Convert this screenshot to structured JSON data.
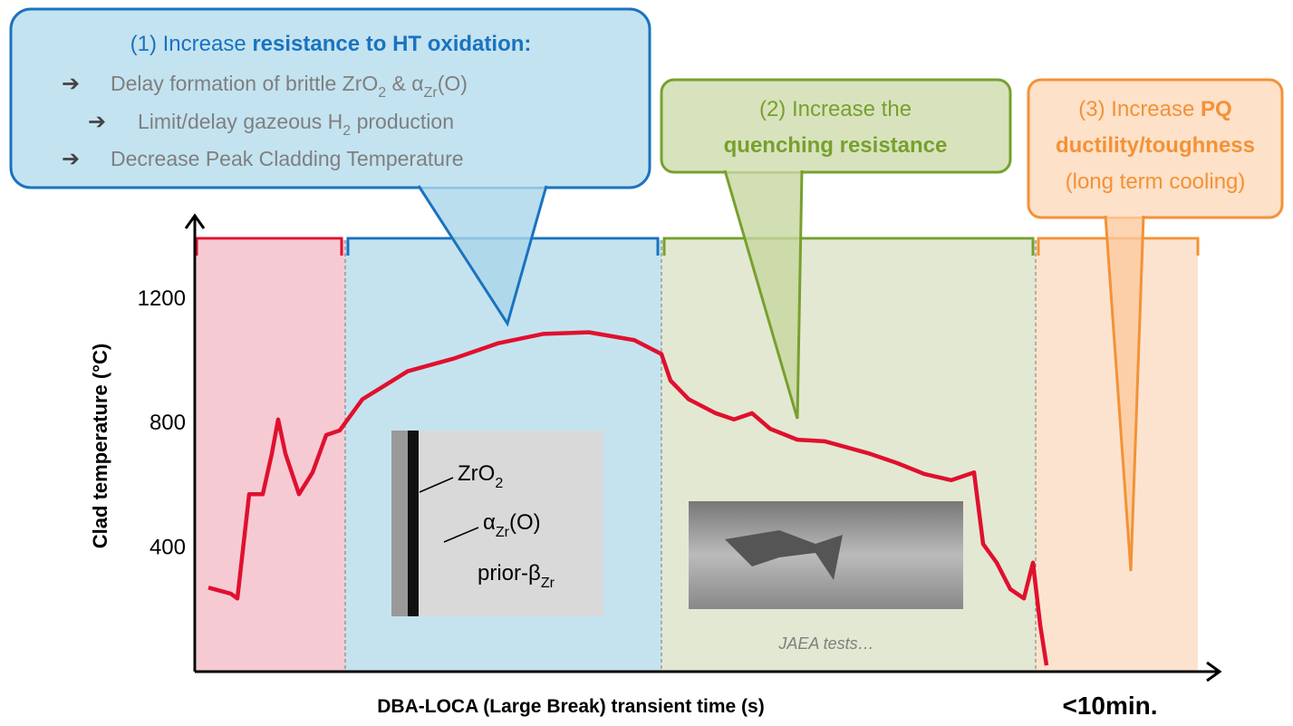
{
  "callout_1": {
    "title": "(1) Increase ",
    "title_bold": "resistance to HT oxidation:",
    "bullet": "➔",
    "item_1": [
      "Delay formation of brittle ZrO",
      "2",
      " & α",
      "Zr",
      "(O)"
    ],
    "item_2": [
      "Limit/delay gazeous H",
      "2",
      " production"
    ],
    "item_3": "Decrease Peak Cladding Temperature"
  },
  "callout_2": {
    "line_1": "(2) Increase the",
    "line_2": "quenching resistance"
  },
  "callout_3": {
    "line_1": "(3) Increase ",
    "line_1_bold": "PQ",
    "line_2": "ductility/toughness",
    "line_3": "(long term cooling)"
  },
  "micrograph": {
    "zro2": [
      "ZrO",
      "2"
    ],
    "alpha": [
      "α",
      "Zr",
      "(O)"
    ],
    "beta": [
      "prior-β",
      "Zr"
    ]
  },
  "photo_caption": "JAEA tests…",
  "chart_data": {
    "type": "line",
    "y_label": "Clad temperature  (°C)",
    "x_label": "DBA-LOCA (Large Break) transient time (s)",
    "x_note": "<10min.",
    "ylim": [
      0,
      1450
    ],
    "yticks": [
      400,
      800,
      1200
    ],
    "color": "#e0102e",
    "categories": [
      null,
      null,
      null,
      null,
      null,
      null,
      null,
      null,
      null,
      null,
      null,
      null,
      null,
      null,
      null,
      null,
      null,
      null,
      null,
      null,
      null,
      null,
      null,
      null,
      null,
      null,
      null,
      null,
      null,
      null,
      null,
      null,
      null,
      null,
      null,
      null,
      null,
      null,
      null,
      null,
      null,
      null
    ],
    "values": [
      270,
      250,
      235,
      570,
      570,
      700,
      810,
      700,
      570,
      640,
      760,
      775,
      875,
      920,
      965,
      1005,
      1055,
      1085,
      1090,
      1065,
      1020,
      935,
      875,
      830,
      810,
      830,
      780,
      745,
      740,
      720,
      700,
      670,
      635,
      615,
      640,
      410,
      350,
      265,
      235,
      350,
      150,
      20
    ]
  }
}
